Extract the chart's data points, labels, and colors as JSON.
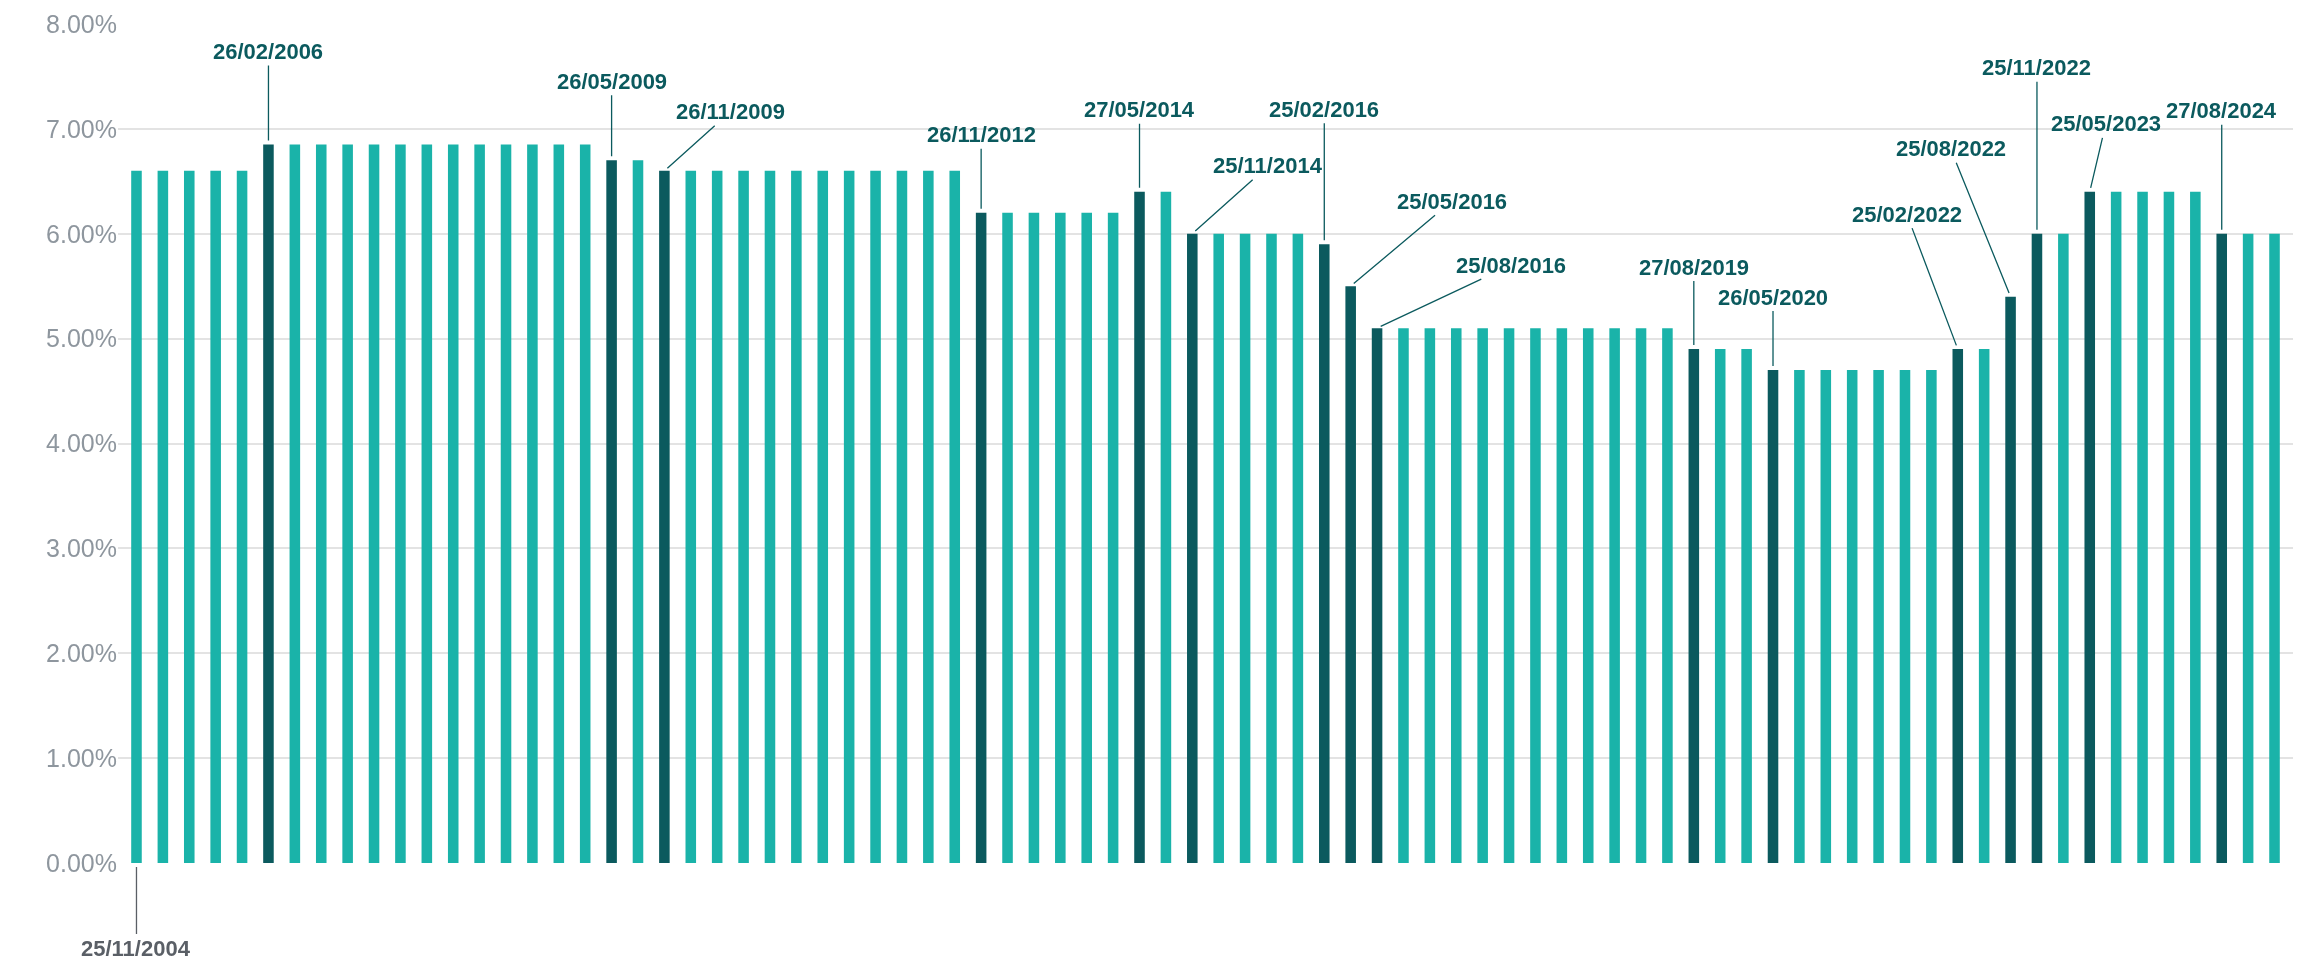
{
  "chart_data": {
    "type": "bar",
    "categories": [
      null,
      null,
      null,
      null,
      null,
      null,
      null,
      null,
      null,
      null,
      null,
      null,
      null,
      null,
      null,
      null,
      null,
      null,
      null,
      null,
      null,
      null,
      null,
      null,
      null,
      null,
      null,
      null,
      null,
      null,
      null,
      null,
      null,
      null,
      null,
      null,
      null,
      null,
      null,
      null,
      null,
      null,
      null,
      null,
      null,
      null,
      null,
      null,
      null,
      null,
      null,
      null,
      null,
      null,
      null,
      null,
      null,
      null,
      null,
      null,
      null,
      null,
      null,
      null,
      null,
      null,
      null,
      null,
      null,
      null,
      null,
      null,
      null,
      null,
      null,
      null,
      null,
      null,
      null,
      null,
      null,
      null
    ],
    "values": [
      6.6,
      6.6,
      6.6,
      6.6,
      6.6,
      6.85,
      6.85,
      6.85,
      6.85,
      6.85,
      6.85,
      6.85,
      6.85,
      6.85,
      6.85,
      6.85,
      6.85,
      6.85,
      6.7,
      6.7,
      6.6,
      6.6,
      6.6,
      6.6,
      6.6,
      6.6,
      6.6,
      6.6,
      6.6,
      6.6,
      6.6,
      6.6,
      6.2,
      6.2,
      6.2,
      6.2,
      6.2,
      6.2,
      6.4,
      6.4,
      6.0,
      6.0,
      6.0,
      6.0,
      6.0,
      5.9,
      5.5,
      5.1,
      5.1,
      5.1,
      5.1,
      5.1,
      5.1,
      5.1,
      5.1,
      5.1,
      5.1,
      5.1,
      5.1,
      4.9,
      4.9,
      4.9,
      4.7,
      4.7,
      4.7,
      4.7,
      4.7,
      4.7,
      4.7,
      4.9,
      4.9,
      5.4,
      6.0,
      6.0,
      6.4,
      6.4,
      6.4,
      6.4,
      6.4,
      6.0,
      6.0,
      6.0
    ],
    "colors": [
      "#1ab3a9",
      "#1ab3a9",
      "#1ab3a9",
      "#1ab3a9",
      "#1ab3a9",
      "#0b5a5e",
      "#1ab3a9",
      "#1ab3a9",
      "#1ab3a9",
      "#1ab3a9",
      "#1ab3a9",
      "#1ab3a9",
      "#1ab3a9",
      "#1ab3a9",
      "#1ab3a9",
      "#1ab3a9",
      "#1ab3a9",
      "#1ab3a9",
      "#0b5a5e",
      "#1ab3a9",
      "#0b5a5e",
      "#1ab3a9",
      "#1ab3a9",
      "#1ab3a9",
      "#1ab3a9",
      "#1ab3a9",
      "#1ab3a9",
      "#1ab3a9",
      "#1ab3a9",
      "#1ab3a9",
      "#1ab3a9",
      "#1ab3a9",
      "#0b5a5e",
      "#1ab3a9",
      "#1ab3a9",
      "#1ab3a9",
      "#1ab3a9",
      "#1ab3a9",
      "#0b5a5e",
      "#1ab3a9",
      "#0b5a5e",
      "#1ab3a9",
      "#1ab3a9",
      "#1ab3a9",
      "#1ab3a9",
      "#0b5a5e",
      "#0b5a5e",
      "#0b5a5e",
      "#1ab3a9",
      "#1ab3a9",
      "#1ab3a9",
      "#1ab3a9",
      "#1ab3a9",
      "#1ab3a9",
      "#1ab3a9",
      "#1ab3a9",
      "#1ab3a9",
      "#1ab3a9",
      "#1ab3a9",
      "#0b5a5e",
      "#1ab3a9",
      "#1ab3a9",
      "#0b5a5e",
      "#1ab3a9",
      "#1ab3a9",
      "#1ab3a9",
      "#1ab3a9",
      "#1ab3a9",
      "#1ab3a9",
      "#0b5a5e",
      "#1ab3a9",
      "#0b5a5e",
      "#0b5a5e",
      "#1ab3a9",
      "#0b5a5e",
      "#1ab3a9",
      "#1ab3a9",
      "#1ab3a9",
      "#1ab3a9",
      "#0b5a5e",
      "#1ab3a9",
      "#1ab3a9"
    ],
    "annotations": [
      {
        "text": "25/11/2004",
        "y": 0
      },
      {
        "text": "26/02/2006",
        "y": 6.85
      },
      {
        "text": "26/05/2009",
        "y": 6.7
      },
      "26/11/2009",
      {
        "text": "26/11/2012",
        "y": 6.2
      },
      {
        "text": "27/05/2014",
        "y": 6.4
      },
      {
        "text": "25/11/2014",
        "y": 6.0
      },
      {
        "text": "25/02/2016",
        "y": 5.9
      },
      "25/05/2016",
      {
        "text": "25/08/2016",
        "y": 5.1
      },
      {
        "text": "27/08/2019",
        "y": 4.9
      },
      {
        "text": "26/05/2020",
        "y": 4.7
      },
      "25/02/2022",
      "25/08/2022",
      {
        "text": "25/11/2022",
        "y": 6.0
      },
      {
        "text": "25/05/2023",
        "y": 6.4
      },
      {
        "text": "27/08/2024",
        "y": 6.0
      }
    ],
    "ylim": [
      0,
      8
    ],
    "yticks": [
      {
        "value": 0,
        "label": "0.00%"
      },
      {
        "value": 1,
        "label": "1.00%"
      },
      {
        "value": 2,
        "label": "2.00%"
      },
      {
        "value": 3,
        "label": "3.00%"
      },
      {
        "value": 4,
        "label": "4.00%"
      },
      {
        "value": 5,
        "label": "5.00%"
      },
      {
        "value": 6,
        "label": "6.00%"
      },
      {
        "value": 7,
        "label": "7.00%"
      },
      {
        "value": 8,
        "label": "8.00%"
      }
    ],
    "tick_labels": "y",
    "grid": "y"
  }
}
